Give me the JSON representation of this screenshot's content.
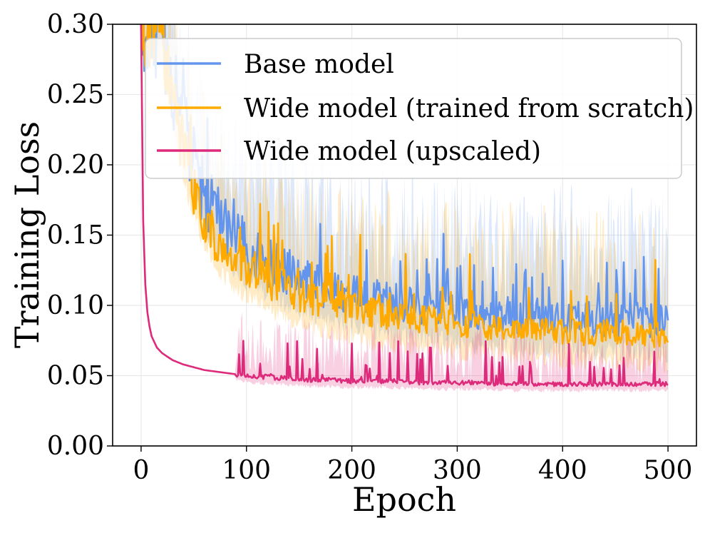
{
  "chart_data": {
    "type": "line",
    "title": "",
    "xlabel": "Epoch",
    "ylabel": "Training Loss",
    "xlim": [
      -27,
      527
    ],
    "ylim": [
      0.0,
      0.3
    ],
    "xticks": [
      0,
      100,
      200,
      300,
      400,
      500
    ],
    "xtick_labels": [
      "0",
      "100",
      "200",
      "300",
      "400",
      "500"
    ],
    "yticks": [
      0.0,
      0.05,
      0.1,
      0.15,
      0.2,
      0.25,
      0.3
    ],
    "ytick_labels": [
      "0.00",
      "0.05",
      "0.10",
      "0.15",
      "0.20",
      "0.25",
      "0.30"
    ],
    "grid": true,
    "legend_position": "top-right",
    "series": [
      {
        "name": "Base model",
        "color": "#6495ed",
        "x": [
          0,
          10,
          20,
          30,
          40,
          50,
          60,
          70,
          80,
          90,
          100,
          120,
          140,
          160,
          180,
          200,
          220,
          240,
          260,
          280,
          300,
          320,
          340,
          360,
          380,
          400,
          420,
          440,
          460,
          480,
          500
        ],
        "values": [
          0.3,
          0.3,
          0.3,
          0.26,
          0.225,
          0.2,
          0.18,
          0.165,
          0.155,
          0.147,
          0.14,
          0.13,
          0.123,
          0.117,
          0.112,
          0.108,
          0.105,
          0.102,
          0.1,
          0.098,
          0.096,
          0.095,
          0.094,
          0.093,
          0.092,
          0.091,
          0.091,
          0.09,
          0.09,
          0.089,
          0.089
        ]
      },
      {
        "name": "Wide model (trained from scratch)",
        "color": "#ffaa00",
        "x": [
          0,
          10,
          20,
          30,
          40,
          50,
          60,
          70,
          80,
          90,
          100,
          120,
          140,
          160,
          180,
          200,
          220,
          240,
          260,
          280,
          300,
          320,
          340,
          360,
          380,
          400,
          420,
          440,
          460,
          480,
          500
        ],
        "values": [
          0.3,
          0.3,
          0.3,
          0.25,
          0.21,
          0.185,
          0.165,
          0.15,
          0.14,
          0.133,
          0.127,
          0.118,
          0.111,
          0.106,
          0.102,
          0.098,
          0.095,
          0.093,
          0.091,
          0.089,
          0.087,
          0.086,
          0.085,
          0.084,
          0.083,
          0.082,
          0.081,
          0.081,
          0.08,
          0.08,
          0.079
        ]
      },
      {
        "name": "Wide model (upscaled)",
        "color": "#dd2a7b",
        "x": [
          0,
          2,
          4,
          6,
          8,
          10,
          15,
          20,
          30,
          40,
          50,
          60,
          70,
          80,
          90,
          100,
          120,
          140,
          160,
          180,
          200,
          220,
          240,
          260,
          280,
          300,
          320,
          340,
          360,
          380,
          400,
          420,
          440,
          460,
          480,
          500
        ],
        "values": [
          0.3,
          0.16,
          0.115,
          0.095,
          0.085,
          0.078,
          0.07,
          0.066,
          0.061,
          0.058,
          0.056,
          0.054,
          0.053,
          0.052,
          0.051,
          0.05,
          0.049,
          0.048,
          0.047,
          0.047,
          0.046,
          0.046,
          0.046,
          0.045,
          0.045,
          0.045,
          0.045,
          0.044,
          0.044,
          0.044,
          0.044,
          0.044,
          0.044,
          0.044,
          0.044,
          0.044
        ]
      }
    ]
  }
}
